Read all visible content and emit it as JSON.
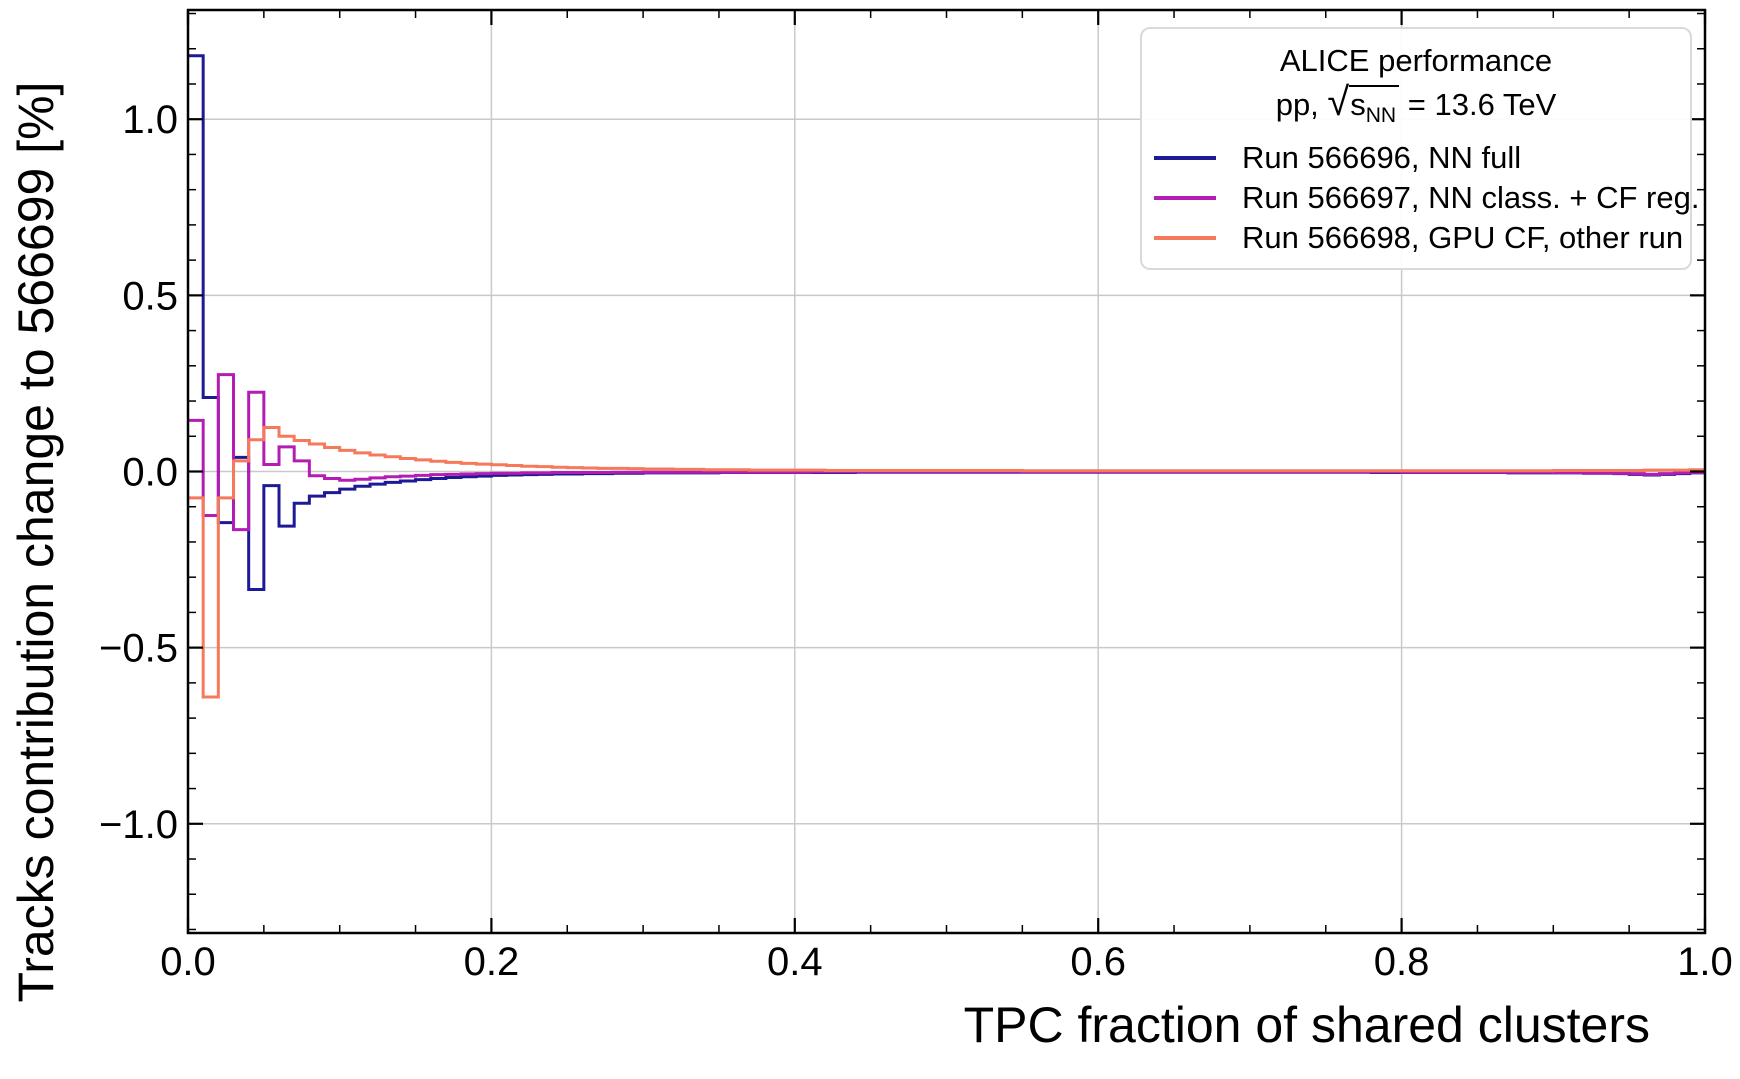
{
  "chart_data": {
    "type": "line",
    "subtype": "step-histogram",
    "title": "",
    "xlabel": "TPC fraction of shared clusters",
    "ylabel": "Tracks contribution change to 566699 [%]",
    "xlim": [
      0.0,
      1.0
    ],
    "ylim": [
      -1.31,
      1.31
    ],
    "x_major_ticks": [
      0.0,
      0.2,
      0.4,
      0.6,
      0.8,
      1.0
    ],
    "x_tick_labels": [
      "0.0",
      "0.2",
      "0.4",
      "0.6",
      "0.8",
      "1.0"
    ],
    "x_minor_step": 0.05,
    "y_major_ticks": [
      -1.0,
      -0.5,
      0.0,
      0.5,
      1.0
    ],
    "y_tick_labels": [
      "−1.0",
      "−0.5",
      "0.0",
      "0.5",
      "1.0"
    ],
    "y_minor_step": 0.1,
    "grid": true,
    "grid_color": "#c9c9c9",
    "spine_color": "#000000",
    "legend": {
      "position": "upper right",
      "title": "ALICE performance",
      "energy": {
        "prefix": "pp,  ",
        "sqrt_symbol": "√",
        "s": "s",
        "sub": "NN",
        "suffix": " = 13.6 TeV"
      }
    },
    "bin_width": 0.01,
    "series": [
      {
        "name": "Run 566696, NN full",
        "color": "#1e1a96",
        "values": [
          1.18,
          0.21,
          -0.145,
          0.04,
          -0.335,
          -0.04,
          -0.155,
          -0.09,
          -0.07,
          -0.06,
          -0.05,
          -0.042,
          -0.036,
          -0.031,
          -0.027,
          -0.023,
          -0.02,
          -0.017,
          -0.015,
          -0.013,
          -0.011,
          -0.01,
          -0.009,
          -0.008,
          -0.007,
          -0.007,
          -0.006,
          -0.006,
          -0.005,
          -0.005,
          -0.004,
          -0.004,
          -0.004,
          -0.004,
          -0.004,
          -0.003,
          -0.003,
          -0.003,
          -0.003,
          -0.003,
          -0.003,
          -0.003,
          -0.003,
          -0.003,
          -0.002,
          -0.002,
          -0.002,
          -0.002,
          -0.002,
          -0.002,
          -0.002,
          -0.002,
          -0.002,
          -0.002,
          -0.002,
          -0.002,
          -0.002,
          -0.002,
          -0.002,
          -0.002,
          -0.002,
          -0.002,
          -0.002,
          -0.002,
          -0.002,
          -0.002,
          -0.002,
          -0.002,
          -0.002,
          -0.002,
          -0.002,
          -0.002,
          -0.002,
          -0.002,
          -0.002,
          -0.002,
          -0.002,
          -0.002,
          -0.003,
          -0.003,
          -0.003,
          -0.003,
          -0.003,
          -0.003,
          -0.003,
          -0.003,
          -0.003,
          -0.004,
          -0.004,
          -0.004,
          -0.004,
          -0.004,
          -0.005,
          -0.005,
          -0.006,
          -0.008,
          -0.01,
          -0.008,
          -0.006,
          -0.004
        ]
      },
      {
        "name": "Run 566697, NN class. + CF reg.",
        "color": "#b41db4",
        "values": [
          0.145,
          -0.125,
          0.275,
          -0.165,
          0.225,
          0.02,
          0.07,
          0.03,
          -0.012,
          -0.02,
          -0.025,
          -0.022,
          -0.018,
          -0.015,
          -0.013,
          -0.011,
          -0.009,
          -0.008,
          -0.007,
          -0.006,
          -0.005,
          -0.005,
          -0.004,
          -0.004,
          -0.003,
          -0.003,
          -0.003,
          -0.003,
          -0.002,
          -0.002,
          -0.002,
          -0.002,
          -0.002,
          -0.002,
          -0.002,
          -0.002,
          -0.002,
          -0.002,
          -0.002,
          -0.002,
          -0.002,
          -0.001,
          -0.001,
          -0.001,
          -0.001,
          -0.001,
          -0.001,
          -0.001,
          -0.001,
          -0.001,
          -0.001,
          -0.001,
          -0.001,
          -0.001,
          -0.001,
          -0.001,
          -0.001,
          -0.001,
          -0.001,
          -0.001,
          -0.001,
          -0.001,
          -0.001,
          -0.001,
          -0.001,
          -0.001,
          -0.001,
          -0.001,
          -0.001,
          -0.001,
          -0.001,
          -0.001,
          -0.001,
          -0.001,
          -0.001,
          -0.001,
          -0.001,
          -0.001,
          -0.001,
          -0.001,
          -0.002,
          -0.002,
          -0.002,
          -0.002,
          -0.002,
          -0.002,
          -0.002,
          -0.002,
          -0.002,
          -0.002,
          -0.003,
          -0.003,
          -0.004,
          -0.004,
          -0.005,
          -0.006,
          -0.008,
          -0.006,
          -0.004,
          -0.003
        ]
      },
      {
        "name": "Run 566698, GPU CF, other run",
        "color": "#f47a5b",
        "values": [
          -0.075,
          -0.64,
          -0.075,
          0.03,
          0.09,
          0.125,
          0.1,
          0.088,
          0.078,
          0.068,
          0.06,
          0.053,
          0.047,
          0.042,
          0.037,
          0.033,
          0.029,
          0.026,
          0.023,
          0.021,
          0.019,
          0.017,
          0.015,
          0.014,
          0.012,
          0.011,
          0.01,
          0.009,
          0.009,
          0.008,
          0.007,
          0.007,
          0.006,
          0.006,
          0.005,
          0.005,
          0.005,
          0.004,
          0.004,
          0.004,
          0.004,
          0.004,
          0.003,
          0.003,
          0.003,
          0.003,
          0.003,
          0.003,
          0.003,
          0.003,
          0.003,
          0.003,
          0.003,
          0.003,
          0.003,
          0.002,
          0.002,
          0.002,
          0.002,
          0.002,
          0.002,
          0.002,
          0.002,
          0.002,
          0.002,
          0.002,
          0.002,
          0.002,
          0.002,
          0.002,
          0.002,
          0.002,
          0.002,
          0.002,
          0.002,
          0.002,
          0.002,
          0.002,
          0.002,
          0.002,
          0.002,
          0.002,
          0.002,
          0.002,
          0.002,
          0.002,
          0.002,
          0.002,
          0.002,
          0.002,
          0.003,
          0.003,
          0.003,
          0.003,
          0.003,
          0.003,
          0.004,
          0.004,
          0.004,
          0.005
        ]
      }
    ]
  }
}
